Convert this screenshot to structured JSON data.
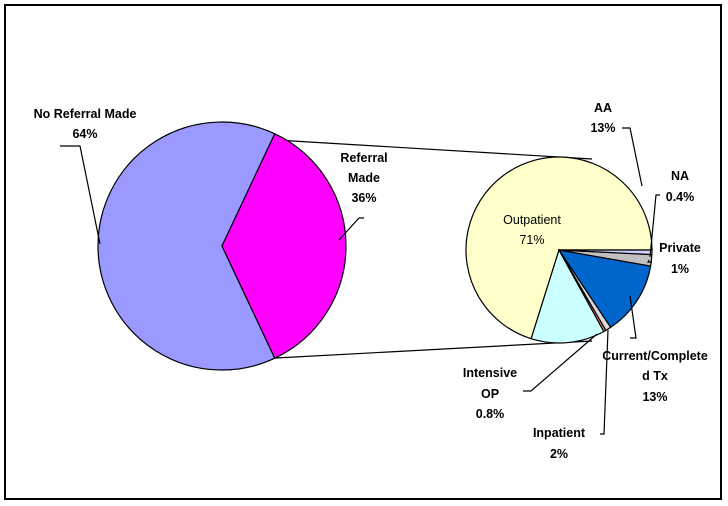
{
  "chart_data": {
    "type": "pie",
    "title": "",
    "main_pie": {
      "slices": [
        {
          "label": "No Referral Made",
          "value": 64,
          "value_label": "64%",
          "color": "#9999ff"
        },
        {
          "label": "Referral Made",
          "value": 36,
          "value_label": "36%",
          "color": "#ff00ff"
        }
      ]
    },
    "breakdown_pie": {
      "of": "Referral Made",
      "slices": [
        {
          "label": "Outpatient",
          "value": 71,
          "value_label": "71%",
          "color": "#ffffcc"
        },
        {
          "label": "AA",
          "value": 13,
          "value_label": "13%",
          "color": "#ccffff"
        },
        {
          "label": "NA",
          "value": 0.4,
          "value_label": "0.4%",
          "color": "#ff8080"
        },
        {
          "label": "Private",
          "value": 1,
          "value_label": "1%",
          "color": "#d9d9d9"
        },
        {
          "label": "Current/Completed Tx",
          "value": 13,
          "value_label": "13%",
          "color": "#0066cc"
        },
        {
          "label": "Inpatient",
          "value": 2,
          "value_label": "2%",
          "color": "#c0c0c0"
        },
        {
          "label": "Intensive OP",
          "value": 0.8,
          "value_label": "0.8%",
          "color": "#ccccff"
        }
      ]
    }
  }
}
